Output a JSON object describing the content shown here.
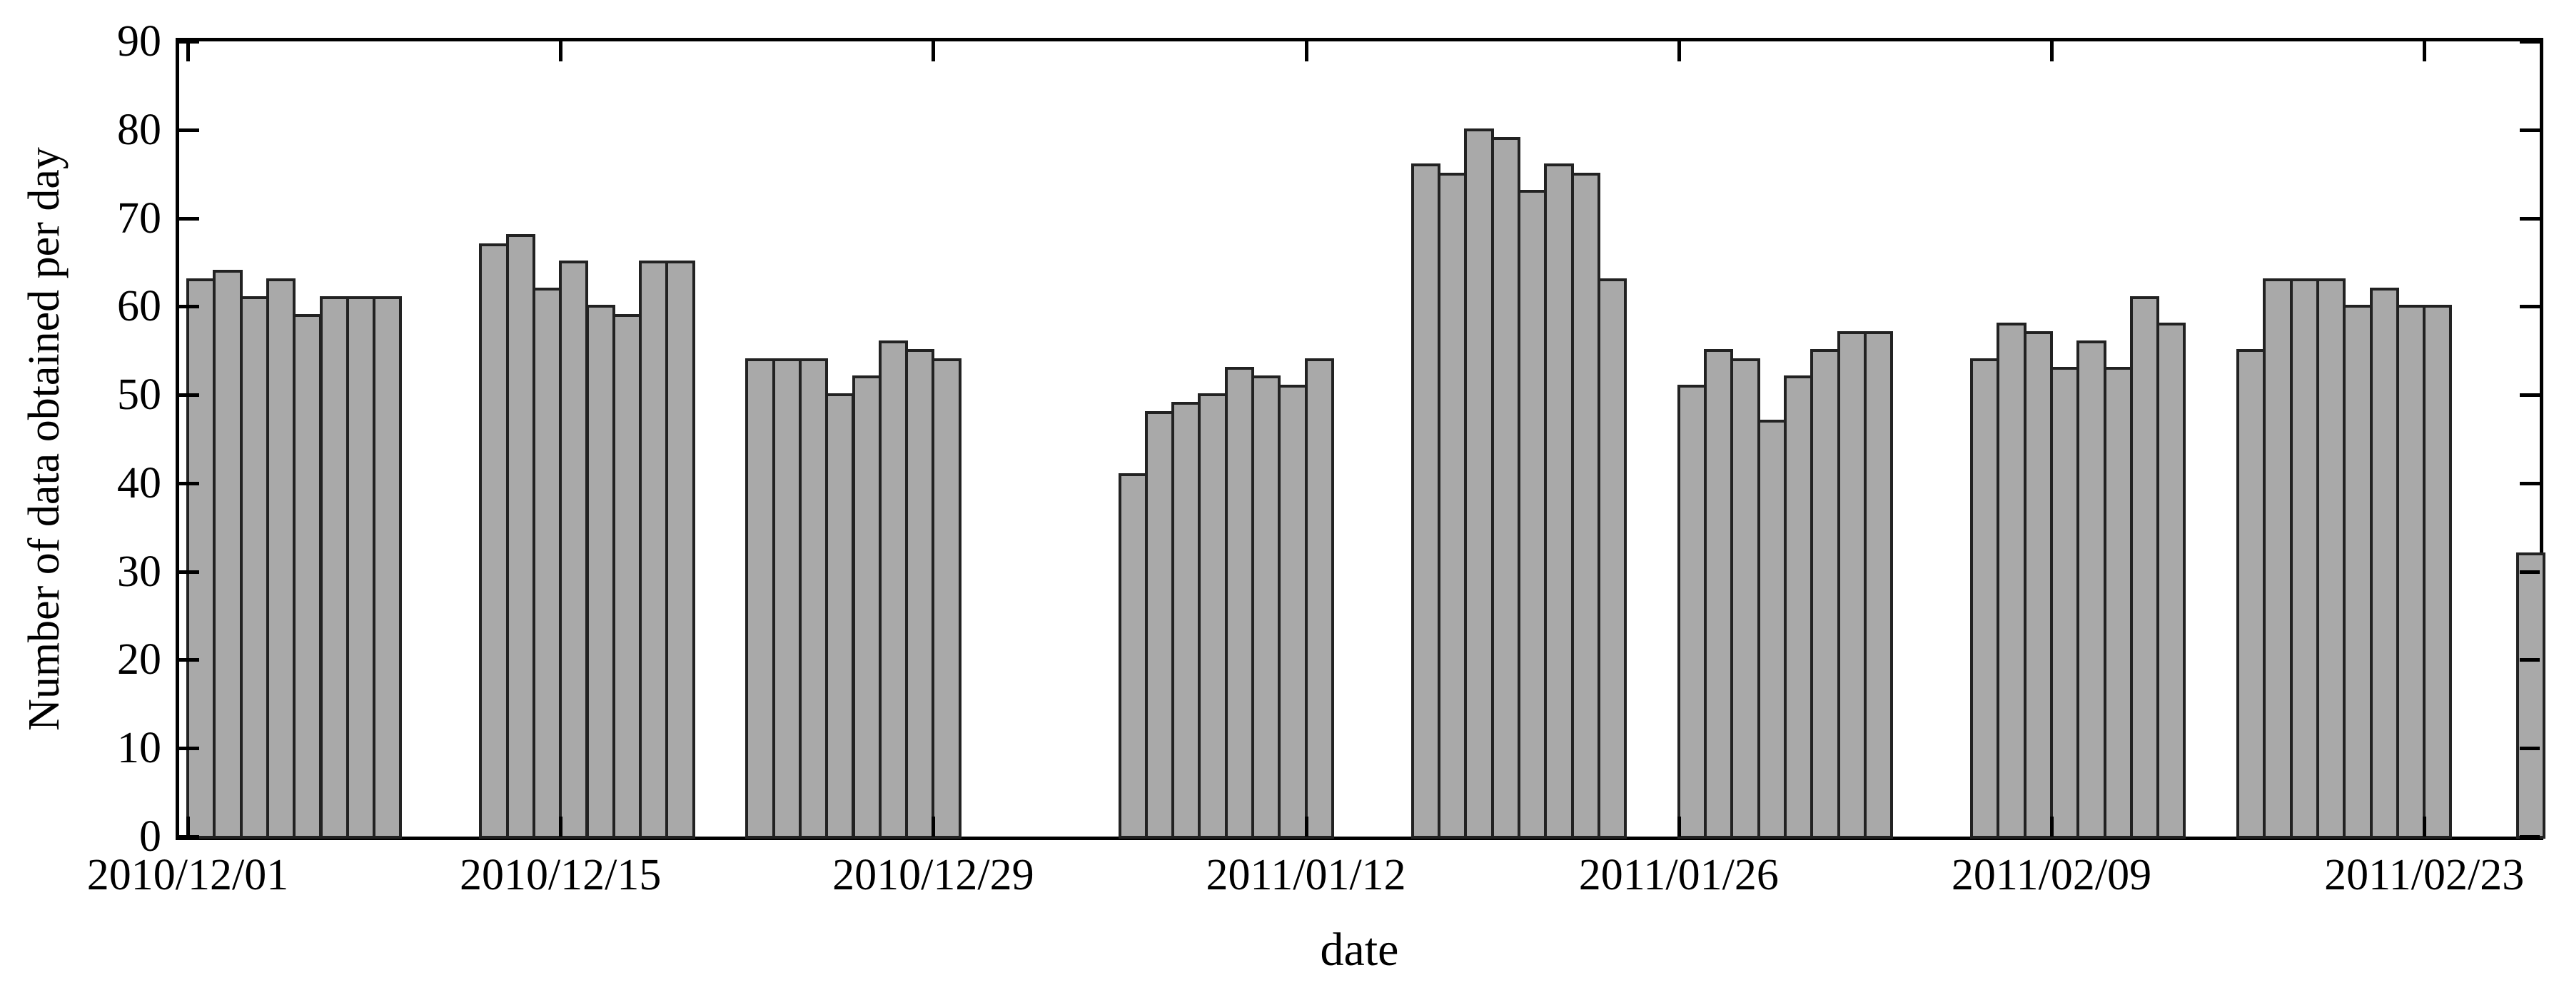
{
  "figure": {
    "background": "#ffffff",
    "text_color": "#000000"
  },
  "chart_data": {
    "type": "bar",
    "title": "",
    "xlabel": "date",
    "ylabel": "Number of data obtained per day",
    "ylim": [
      0,
      90
    ],
    "ytick_values": [
      0,
      10,
      20,
      30,
      40,
      50,
      60,
      70,
      80,
      90
    ],
    "ytick_labels": [
      "0",
      "10",
      "20",
      "30",
      "40",
      "50",
      "60",
      "70",
      "80",
      "90"
    ],
    "xtick_labels": [
      {
        "label": "2010/12/01",
        "day": 0
      },
      {
        "label": "2010/12/15",
        "day": 14
      },
      {
        "label": "2010/12/29",
        "day": 28
      },
      {
        "label": "2011/01/12",
        "day": 42
      },
      {
        "label": "2011/01/26",
        "day": 56
      },
      {
        "label": "2011/02/09",
        "day": 70
      },
      {
        "label": "2011/02/23",
        "day": 84
      }
    ],
    "grid": false,
    "legend": null,
    "bar_fill": "#a9a9a9",
    "bar_outline": "#222222",
    "axis_color": "#000000",
    "tick_style": "inner, mirrored on all four sides",
    "clusters": [
      {
        "start_day": 0,
        "values": [
          63,
          64,
          61,
          63,
          59,
          61,
          61,
          61
        ]
      },
      {
        "start_day": 11,
        "values": [
          67,
          68,
          62,
          65,
          60,
          59,
          65,
          65
        ]
      },
      {
        "start_day": 21,
        "values": [
          54,
          54,
          54,
          50,
          52,
          56,
          55,
          54
        ]
      },
      {
        "start_day": 35,
        "values": [
          41,
          48,
          49,
          50,
          53,
          52,
          51,
          54
        ]
      },
      {
        "start_day": 46,
        "values": [
          76,
          75,
          80,
          79,
          73,
          76,
          75,
          63
        ]
      },
      {
        "start_day": 56,
        "values": [
          51,
          55,
          54,
          47,
          52,
          55,
          57,
          57
        ]
      },
      {
        "start_day": 67,
        "values": [
          54,
          58,
          57,
          53,
          56,
          53,
          61,
          58
        ]
      },
      {
        "start_day": 77,
        "values": [
          55,
          63,
          63,
          63,
          60,
          62,
          60,
          60
        ]
      },
      {
        "start_day": 87.5,
        "values": [
          32
        ]
      }
    ]
  }
}
